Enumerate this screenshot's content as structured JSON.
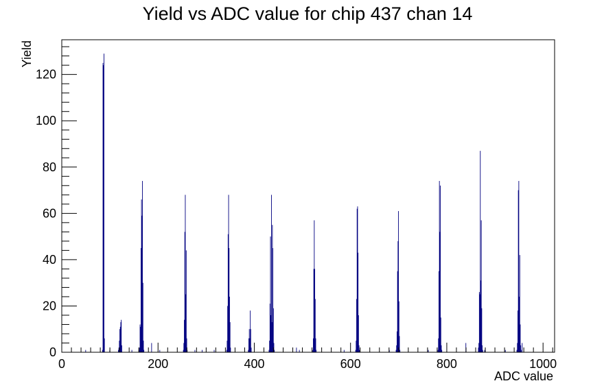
{
  "chart_data": {
    "type": "bar",
    "title": "Yield vs ADC value for chip 437 chan 14",
    "xlabel": "ADC value",
    "ylabel": "Yield",
    "xlim": [
      0,
      1024
    ],
    "ylim": [
      0,
      135
    ],
    "x_ticks": [
      "0",
      "200",
      "400",
      "600",
      "800",
      "1000"
    ],
    "y_ticks": [
      "0",
      "20",
      "40",
      "60",
      "80",
      "100",
      "120"
    ],
    "grid": false,
    "legend": "none",
    "bar_color": "#000080",
    "bins": [
      {
        "x": 49,
        "y": 1
      },
      {
        "x": 84,
        "y": 1
      },
      {
        "x": 85,
        "y": 125
      },
      {
        "x": 86,
        "y": 124
      },
      {
        "x": 87,
        "y": 129
      },
      {
        "x": 88,
        "y": 6
      },
      {
        "x": 99,
        "y": 1
      },
      {
        "x": 117,
        "y": 1
      },
      {
        "x": 118,
        "y": 2
      },
      {
        "x": 119,
        "y": 5
      },
      {
        "x": 120,
        "y": 10
      },
      {
        "x": 121,
        "y": 11
      },
      {
        "x": 122,
        "y": 13
      },
      {
        "x": 123,
        "y": 14
      },
      {
        "x": 124,
        "y": 3
      },
      {
        "x": 145,
        "y": 1
      },
      {
        "x": 160,
        "y": 1
      },
      {
        "x": 161,
        "y": 2
      },
      {
        "x": 162,
        "y": 12
      },
      {
        "x": 163,
        "y": 11
      },
      {
        "x": 164,
        "y": 45
      },
      {
        "x": 165,
        "y": 66
      },
      {
        "x": 166,
        "y": 59
      },
      {
        "x": 167,
        "y": 74
      },
      {
        "x": 168,
        "y": 30
      },
      {
        "x": 169,
        "y": 5
      },
      {
        "x": 170,
        "y": 1
      },
      {
        "x": 186,
        "y": 4
      },
      {
        "x": 203,
        "y": 1
      },
      {
        "x": 252,
        "y": 1
      },
      {
        "x": 253,
        "y": 4
      },
      {
        "x": 254,
        "y": 14
      },
      {
        "x": 255,
        "y": 52
      },
      {
        "x": 256,
        "y": 68
      },
      {
        "x": 257,
        "y": 25
      },
      {
        "x": 258,
        "y": 44
      },
      {
        "x": 259,
        "y": 6
      },
      {
        "x": 260,
        "y": 1
      },
      {
        "x": 276,
        "y": 1
      },
      {
        "x": 291,
        "y": 1
      },
      {
        "x": 316,
        "y": 1
      },
      {
        "x": 342,
        "y": 1
      },
      {
        "x": 343,
        "y": 5
      },
      {
        "x": 344,
        "y": 20
      },
      {
        "x": 345,
        "y": 51
      },
      {
        "x": 346,
        "y": 68
      },
      {
        "x": 347,
        "y": 45
      },
      {
        "x": 348,
        "y": 24
      },
      {
        "x": 349,
        "y": 13
      },
      {
        "x": 350,
        "y": 2
      },
      {
        "x": 387,
        "y": 1
      },
      {
        "x": 388,
        "y": 6
      },
      {
        "x": 389,
        "y": 10
      },
      {
        "x": 390,
        "y": 6
      },
      {
        "x": 391,
        "y": 18
      },
      {
        "x": 392,
        "y": 10
      },
      {
        "x": 393,
        "y": 2
      },
      {
        "x": 430,
        "y": 1
      },
      {
        "x": 431,
        "y": 5
      },
      {
        "x": 432,
        "y": 21
      },
      {
        "x": 433,
        "y": 50
      },
      {
        "x": 434,
        "y": 16
      },
      {
        "x": 435,
        "y": 68
      },
      {
        "x": 436,
        "y": 13
      },
      {
        "x": 437,
        "y": 55
      },
      {
        "x": 438,
        "y": 45
      },
      {
        "x": 439,
        "y": 19
      },
      {
        "x": 440,
        "y": 4
      },
      {
        "x": 441,
        "y": 1
      },
      {
        "x": 487,
        "y": 2
      },
      {
        "x": 493,
        "y": 1
      },
      {
        "x": 521,
        "y": 1
      },
      {
        "x": 522,
        "y": 6
      },
      {
        "x": 523,
        "y": 36
      },
      {
        "x": 524,
        "y": 57
      },
      {
        "x": 525,
        "y": 36
      },
      {
        "x": 526,
        "y": 23
      },
      {
        "x": 527,
        "y": 6
      },
      {
        "x": 528,
        "y": 1
      },
      {
        "x": 586,
        "y": 1
      },
      {
        "x": 610,
        "y": 1
      },
      {
        "x": 611,
        "y": 5
      },
      {
        "x": 612,
        "y": 23
      },
      {
        "x": 613,
        "y": 62
      },
      {
        "x": 614,
        "y": 63
      },
      {
        "x": 615,
        "y": 43
      },
      {
        "x": 616,
        "y": 16
      },
      {
        "x": 617,
        "y": 3
      },
      {
        "x": 618,
        "y": 1
      },
      {
        "x": 680,
        "y": 1
      },
      {
        "x": 694,
        "y": 1
      },
      {
        "x": 695,
        "y": 3
      },
      {
        "x": 696,
        "y": 9
      },
      {
        "x": 697,
        "y": 35
      },
      {
        "x": 698,
        "y": 48
      },
      {
        "x": 699,
        "y": 61
      },
      {
        "x": 700,
        "y": 22
      },
      {
        "x": 701,
        "y": 7
      },
      {
        "x": 702,
        "y": 1
      },
      {
        "x": 761,
        "y": 1
      },
      {
        "x": 781,
        "y": 1
      },
      {
        "x": 782,
        "y": 6
      },
      {
        "x": 783,
        "y": 35
      },
      {
        "x": 784,
        "y": 74
      },
      {
        "x": 785,
        "y": 52
      },
      {
        "x": 786,
        "y": 72
      },
      {
        "x": 787,
        "y": 15
      },
      {
        "x": 788,
        "y": 3
      },
      {
        "x": 789,
        "y": 1
      },
      {
        "x": 839,
        "y": 4
      },
      {
        "x": 865,
        "y": 2
      },
      {
        "x": 866,
        "y": 4
      },
      {
        "x": 867,
        "y": 26
      },
      {
        "x": 868,
        "y": 25
      },
      {
        "x": 869,
        "y": 87
      },
      {
        "x": 870,
        "y": 31
      },
      {
        "x": 871,
        "y": 57
      },
      {
        "x": 872,
        "y": 19
      },
      {
        "x": 873,
        "y": 3
      },
      {
        "x": 874,
        "y": 1
      },
      {
        "x": 878,
        "y": 1
      },
      {
        "x": 921,
        "y": 1
      },
      {
        "x": 945,
        "y": 1
      },
      {
        "x": 946,
        "y": 4
      },
      {
        "x": 947,
        "y": 18
      },
      {
        "x": 948,
        "y": 70
      },
      {
        "x": 949,
        "y": 74
      },
      {
        "x": 950,
        "y": 24
      },
      {
        "x": 951,
        "y": 42
      },
      {
        "x": 952,
        "y": 12
      },
      {
        "x": 953,
        "y": 3
      },
      {
        "x": 954,
        "y": 1
      },
      {
        "x": 956,
        "y": 4
      }
    ]
  }
}
